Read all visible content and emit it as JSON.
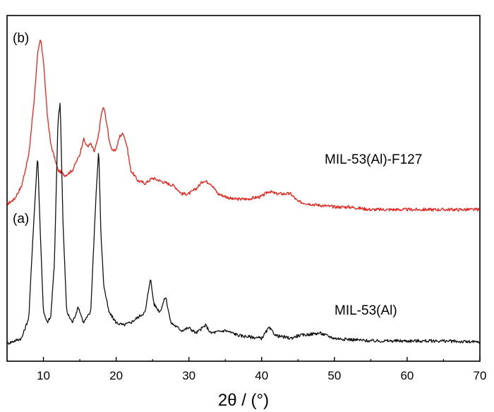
{
  "chart_data": {
    "type": "line",
    "xlabel": "2θ / (°)",
    "ylabel": "",
    "xlim": [
      5,
      70
    ],
    "xticks": [
      "10",
      "20",
      "30",
      "40",
      "50",
      "60",
      "70"
    ],
    "yticks_shown": false,
    "grid": false,
    "panel_labels": [
      "(b)",
      "(a)"
    ],
    "series": [
      {
        "name": "MIL-53(Al)-F127",
        "color": "#e8231c",
        "baseline": 0.5,
        "points": [
          [
            5,
            0.53
          ],
          [
            6,
            0.55
          ],
          [
            7,
            0.6
          ],
          [
            8,
            0.72
          ],
          [
            8.7,
            0.92
          ],
          [
            9.2,
            1.1
          ],
          [
            9.6,
            1.16
          ],
          [
            10.0,
            1.08
          ],
          [
            10.5,
            0.88
          ],
          [
            11,
            0.76
          ],
          [
            12,
            0.66
          ],
          [
            13,
            0.64
          ],
          [
            14,
            0.66
          ],
          [
            15,
            0.72
          ],
          [
            15.5,
            0.78
          ],
          [
            16,
            0.75
          ],
          [
            16.5,
            0.76
          ],
          [
            17,
            0.73
          ],
          [
            17.5,
            0.78
          ],
          [
            18,
            0.88
          ],
          [
            18.3,
            0.9
          ],
          [
            18.7,
            0.84
          ],
          [
            19,
            0.78
          ],
          [
            19.5,
            0.73
          ],
          [
            20,
            0.74
          ],
          [
            20.5,
            0.79
          ],
          [
            21,
            0.8
          ],
          [
            21.5,
            0.75
          ],
          [
            22,
            0.66
          ],
          [
            23,
            0.62
          ],
          [
            24,
            0.61
          ],
          [
            25,
            0.63
          ],
          [
            26,
            0.62
          ],
          [
            27,
            0.61
          ],
          [
            28,
            0.6
          ],
          [
            29,
            0.57
          ],
          [
            30,
            0.57
          ],
          [
            31,
            0.59
          ],
          [
            32,
            0.62
          ],
          [
            33,
            0.61
          ],
          [
            34,
            0.57
          ],
          [
            36,
            0.55
          ],
          [
            38,
            0.55
          ],
          [
            40,
            0.56
          ],
          [
            41,
            0.58
          ],
          [
            42,
            0.57
          ],
          [
            43,
            0.57
          ],
          [
            44,
            0.57
          ],
          [
            45,
            0.54
          ],
          [
            47,
            0.53
          ],
          [
            50,
            0.52
          ],
          [
            52,
            0.52
          ],
          [
            55,
            0.51
          ],
          [
            60,
            0.51
          ],
          [
            65,
            0.51
          ],
          [
            70,
            0.51
          ]
        ]
      },
      {
        "name": "MIL-53(Al)",
        "color": "#111111",
        "baseline": 0.0,
        "points": [
          [
            5,
            0.0
          ],
          [
            6,
            0.01
          ],
          [
            7,
            0.02
          ],
          [
            8,
            0.1
          ],
          [
            8.5,
            0.38
          ],
          [
            9.2,
            0.72
          ],
          [
            9.6,
            0.4
          ],
          [
            10,
            0.12
          ],
          [
            10.5,
            0.08
          ],
          [
            11,
            0.1
          ],
          [
            11.5,
            0.3
          ],
          [
            12.0,
            0.85
          ],
          [
            12.3,
            0.92
          ],
          [
            12.7,
            0.45
          ],
          [
            13.2,
            0.12
          ],
          [
            14,
            0.08
          ],
          [
            14.8,
            0.14
          ],
          [
            15.5,
            0.08
          ],
          [
            16.5,
            0.12
          ],
          [
            17.2,
            0.55
          ],
          [
            17.6,
            0.74
          ],
          [
            17.9,
            0.42
          ],
          [
            18.3,
            0.22
          ],
          [
            19,
            0.12
          ],
          [
            20,
            0.08
          ],
          [
            21,
            0.07
          ],
          [
            22,
            0.08
          ],
          [
            23,
            0.1
          ],
          [
            24,
            0.12
          ],
          [
            24.7,
            0.25
          ],
          [
            25.2,
            0.15
          ],
          [
            26,
            0.12
          ],
          [
            26.8,
            0.18
          ],
          [
            27.5,
            0.08
          ],
          [
            29,
            0.05
          ],
          [
            30,
            0.06
          ],
          [
            31,
            0.04
          ],
          [
            32.3,
            0.07
          ],
          [
            33,
            0.04
          ],
          [
            35,
            0.05
          ],
          [
            37,
            0.03
          ],
          [
            40,
            0.02
          ],
          [
            41,
            0.06
          ],
          [
            42,
            0.03
          ],
          [
            44,
            0.02
          ],
          [
            45,
            0.03
          ],
          [
            48,
            0.04
          ],
          [
            50,
            0.02
          ],
          [
            55,
            0.01
          ],
          [
            60,
            0.01
          ],
          [
            65,
            0.01
          ],
          [
            70,
            0.005
          ]
        ]
      }
    ]
  }
}
